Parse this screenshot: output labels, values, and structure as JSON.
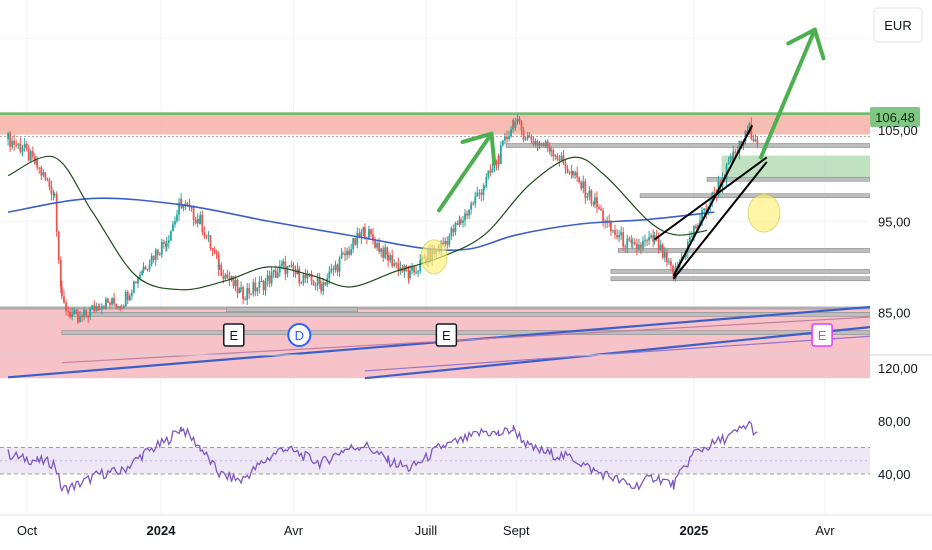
{
  "currency": "EUR",
  "last_price": "106,48",
  "chart_data": [
    {
      "type": "candlestick",
      "panel": "price",
      "y_ticks": [
        "105,00",
        "95,00",
        "85,00"
      ],
      "y_ticks_values": [
        105,
        95,
        85
      ],
      "ylim": [
        77.5,
        117.5
      ],
      "x_ticks": [
        "Oct",
        "2024",
        "Avr",
        "Juill",
        "Sept",
        "2025",
        "Avr"
      ],
      "x_ticks_bold": [
        false,
        true,
        false,
        false,
        false,
        true,
        false
      ],
      "events": [
        "E",
        "D",
        "E",
        "E"
      ],
      "price_path": [
        [
          "2023-09-18",
          104
        ],
        [
          "2023-09-28",
          103
        ],
        [
          "2023-10-08",
          101
        ],
        [
          "2023-10-20",
          98
        ],
        [
          "2023-10-25",
          86
        ],
        [
          "2023-11-05",
          84
        ],
        [
          "2023-11-20",
          86
        ],
        [
          "2023-12-05",
          86
        ],
        [
          "2023-12-20",
          90
        ],
        [
          "2024-01-05",
          93
        ],
        [
          "2024-01-15",
          97
        ],
        [
          "2024-01-28",
          95
        ],
        [
          "2024-02-10",
          90
        ],
        [
          "2024-02-25",
          87
        ],
        [
          "2024-03-10",
          88
        ],
        [
          "2024-03-25",
          90
        ],
        [
          "2024-04-05",
          89
        ],
        [
          "2024-04-20",
          88
        ],
        [
          "2024-05-05",
          91
        ],
        [
          "2024-05-20",
          94
        ],
        [
          "2024-06-05",
          91
        ],
        [
          "2024-06-20",
          89
        ],
        [
          "2024-07-01",
          91
        ],
        [
          "2024-07-10",
          92
        ],
        [
          "2024-07-25",
          95
        ],
        [
          "2024-08-10",
          99
        ],
        [
          "2024-08-20",
          102
        ],
        [
          "2024-08-30",
          106
        ],
        [
          "2024-09-10",
          104
        ],
        [
          "2024-09-25",
          103
        ],
        [
          "2024-10-10",
          100
        ],
        [
          "2024-10-25",
          97
        ],
        [
          "2024-11-05",
          94
        ],
        [
          "2024-11-20",
          92
        ],
        [
          "2024-12-05",
          93
        ],
        [
          "2024-12-18",
          89
        ],
        [
          "2025-01-01",
          94
        ],
        [
          "2025-01-15",
          98
        ],
        [
          "2025-01-28",
          102
        ],
        [
          "2025-02-08",
          105
        ],
        [
          "2025-02-14",
          104
        ]
      ],
      "sma_long": [
        [
          "2023-09-18",
          96
        ],
        [
          "2023-11-15",
          97.5
        ],
        [
          "2024-01-15",
          96.8
        ],
        [
          "2024-03-15",
          95
        ],
        [
          "2024-05-15",
          93.3
        ],
        [
          "2024-07-01",
          92
        ],
        [
          "2024-08-01",
          92
        ],
        [
          "2024-09-01",
          93.5
        ],
        [
          "2024-10-15",
          94.7
        ],
        [
          "2024-12-01",
          95.2
        ],
        [
          "2025-01-15",
          96
        ]
      ],
      "sma_short": [
        [
          "2023-09-18",
          100
        ],
        [
          "2023-10-20",
          102
        ],
        [
          "2023-11-15",
          96
        ],
        [
          "2023-12-15",
          89
        ],
        [
          "2024-01-15",
          87.5
        ],
        [
          "2024-02-15",
          88.5
        ],
        [
          "2024-03-15",
          90
        ],
        [
          "2024-04-15",
          89
        ],
        [
          "2024-05-10",
          87.8
        ],
        [
          "2024-06-10",
          89.5
        ],
        [
          "2024-07-10",
          91
        ],
        [
          "2024-08-10",
          93.5
        ],
        [
          "2024-09-10",
          99
        ],
        [
          "2024-10-10",
          102
        ],
        [
          "2024-11-01",
          100
        ],
        [
          "2024-12-01",
          95
        ],
        [
          "2024-12-20",
          93.5
        ],
        [
          "2025-01-10",
          94
        ]
      ],
      "resistance_zone": [
        104.5,
        106.8
      ],
      "support_zone": [
        77.8,
        85.5
      ]
    },
    {
      "type": "line",
      "panel": "rsi",
      "y_ticks": [
        "120,00",
        "80,00",
        "40,00"
      ],
      "y_ticks_values": [
        120,
        80,
        40
      ],
      "ylim": [
        10,
        130
      ],
      "band": [
        40,
        60
      ],
      "mid": 50,
      "series_color": "#7e57c2",
      "path": [
        [
          "2023-09-18",
          55
        ],
        [
          "2023-09-28",
          52
        ],
        [
          "2023-10-08",
          50
        ],
        [
          "2023-10-20",
          48
        ],
        [
          "2023-10-25",
          28
        ],
        [
          "2023-11-05",
          32
        ],
        [
          "2023-11-20",
          40
        ],
        [
          "2023-12-05",
          42
        ],
        [
          "2023-12-20",
          55
        ],
        [
          "2024-01-05",
          65
        ],
        [
          "2024-01-15",
          75
        ],
        [
          "2024-01-28",
          60
        ],
        [
          "2024-02-10",
          40
        ],
        [
          "2024-02-25",
          35
        ],
        [
          "2024-03-10",
          48
        ],
        [
          "2024-03-25",
          60
        ],
        [
          "2024-04-05",
          55
        ],
        [
          "2024-04-20",
          48
        ],
        [
          "2024-05-05",
          58
        ],
        [
          "2024-05-20",
          62
        ],
        [
          "2024-06-05",
          50
        ],
        [
          "2024-06-20",
          44
        ],
        [
          "2024-07-01",
          52
        ],
        [
          "2024-07-10",
          60
        ],
        [
          "2024-07-25",
          65
        ],
        [
          "2024-08-10",
          72
        ],
        [
          "2024-08-20",
          70
        ],
        [
          "2024-08-30",
          74
        ],
        [
          "2024-09-10",
          60
        ],
        [
          "2024-09-25",
          55
        ],
        [
          "2024-10-10",
          52
        ],
        [
          "2024-10-25",
          42
        ],
        [
          "2024-11-05",
          38
        ],
        [
          "2024-11-20",
          30
        ],
        [
          "2024-12-05",
          38
        ],
        [
          "2024-12-18",
          32
        ],
        [
          "2025-01-01",
          56
        ],
        [
          "2025-01-15",
          63
        ],
        [
          "2025-01-28",
          70
        ],
        [
          "2025-02-08",
          78
        ],
        [
          "2025-02-14",
          68
        ]
      ]
    }
  ],
  "colors": {
    "grid": "#f0f3fa",
    "candle_up": "#26a69a",
    "candle_down": "#ef5350",
    "sma_long": "#3b5fc9",
    "sma_short": "#1f4d1c",
    "resistance_zone": "#f6b2a6",
    "support_zone": "#f7b7c0",
    "green_zone": "#a5d6a7",
    "arrow": "#4caf50",
    "highlight": "#fff176",
    "rsi_band": "#ede7f6",
    "rsi_line": "#7e57c2",
    "last_price_bg": "#81c784"
  }
}
